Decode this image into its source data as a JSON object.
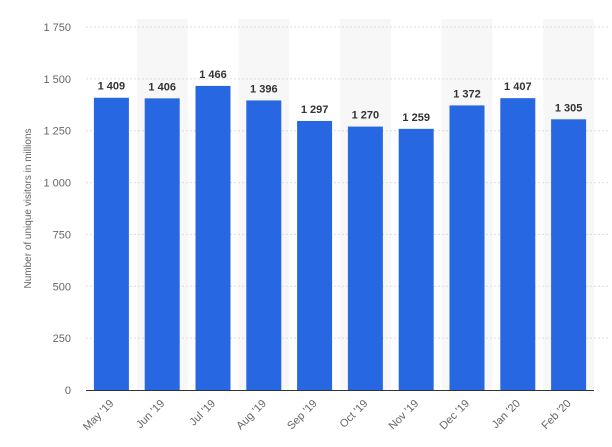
{
  "chart_data": {
    "type": "bar",
    "title": "",
    "xlabel": "",
    "ylabel": "Number of unique visitors in millions",
    "categories": [
      "May '19",
      "Jun '19",
      "Jul '19",
      "Aug '19",
      "Sep '19",
      "Oct '19",
      "Nov '19",
      "Dec '19",
      "Jan '20",
      "Feb '20"
    ],
    "values": [
      1409,
      1406,
      1466,
      1396,
      1297,
      1270,
      1259,
      1372,
      1407,
      1305
    ],
    "value_labels": [
      "1 409",
      "1 406",
      "1 466",
      "1 396",
      "1 297",
      "1 270",
      "1 259",
      "1 372",
      "1 407",
      "1 305"
    ],
    "ylim": [
      0,
      1750
    ],
    "yticks": [
      0,
      250,
      500,
      750,
      1000,
      1250,
      1500,
      1750
    ],
    "ytick_labels": [
      "0",
      "250",
      "500",
      "750",
      "1 000",
      "1 250",
      "1 500",
      "1 750"
    ],
    "grid": true,
    "legend": "none",
    "bar_color": "#2767e1",
    "band_color": "#f7f7f7",
    "grid_color": "#dddddd"
  }
}
